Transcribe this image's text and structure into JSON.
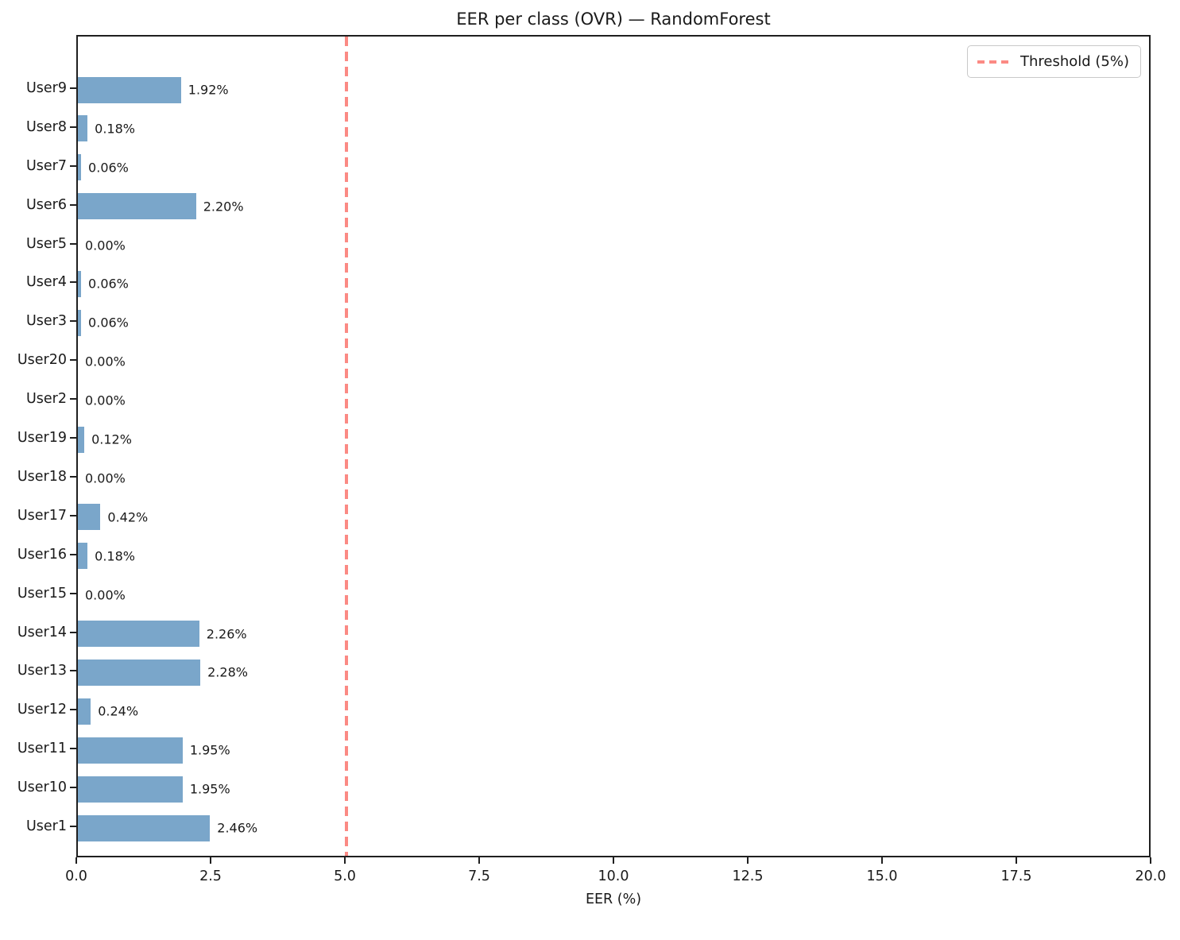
{
  "title": "EER per class (OVR) — RandomForest",
  "chart_data": {
    "type": "bar",
    "orientation": "horizontal",
    "title": "EER per class (OVR) — RandomForest",
    "xlabel": "EER (%)",
    "ylabel": "",
    "xlim": [
      0,
      20
    ],
    "xticks": [
      "0.0",
      "2.5",
      "5.0",
      "7.5",
      "10.0",
      "12.5",
      "15.0",
      "17.5",
      "20.0"
    ],
    "grid": false,
    "legend_position": "upper right",
    "categories": [
      "User9",
      "User8",
      "User7",
      "User6",
      "User5",
      "User4",
      "User3",
      "User20",
      "User2",
      "User19",
      "User18",
      "User17",
      "User16",
      "User15",
      "User14",
      "User13",
      "User12",
      "User11",
      "User10",
      "User1"
    ],
    "values": [
      1.92,
      0.18,
      0.06,
      2.2,
      0.0,
      0.06,
      0.06,
      0.0,
      0.0,
      0.12,
      0.0,
      0.42,
      0.18,
      0.0,
      2.26,
      2.28,
      0.24,
      1.95,
      1.95,
      2.46
    ],
    "value_labels": [
      "1.92%",
      "0.18%",
      "0.06%",
      "2.20%",
      "0.00%",
      "0.06%",
      "0.06%",
      "0.00%",
      "0.00%",
      "0.12%",
      "0.00%",
      "0.42%",
      "0.18%",
      "0.00%",
      "2.26%",
      "2.28%",
      "0.24%",
      "1.95%",
      "1.95%",
      "2.46%"
    ],
    "threshold": {
      "value": 5,
      "label": "Threshold (5%)"
    },
    "colors": {
      "bar": "#7aa6ca",
      "threshold": "#fb8a84",
      "spine": "#1f1f1f",
      "text": "#1a1a1a",
      "legend_border": "#c9c9c9"
    }
  }
}
